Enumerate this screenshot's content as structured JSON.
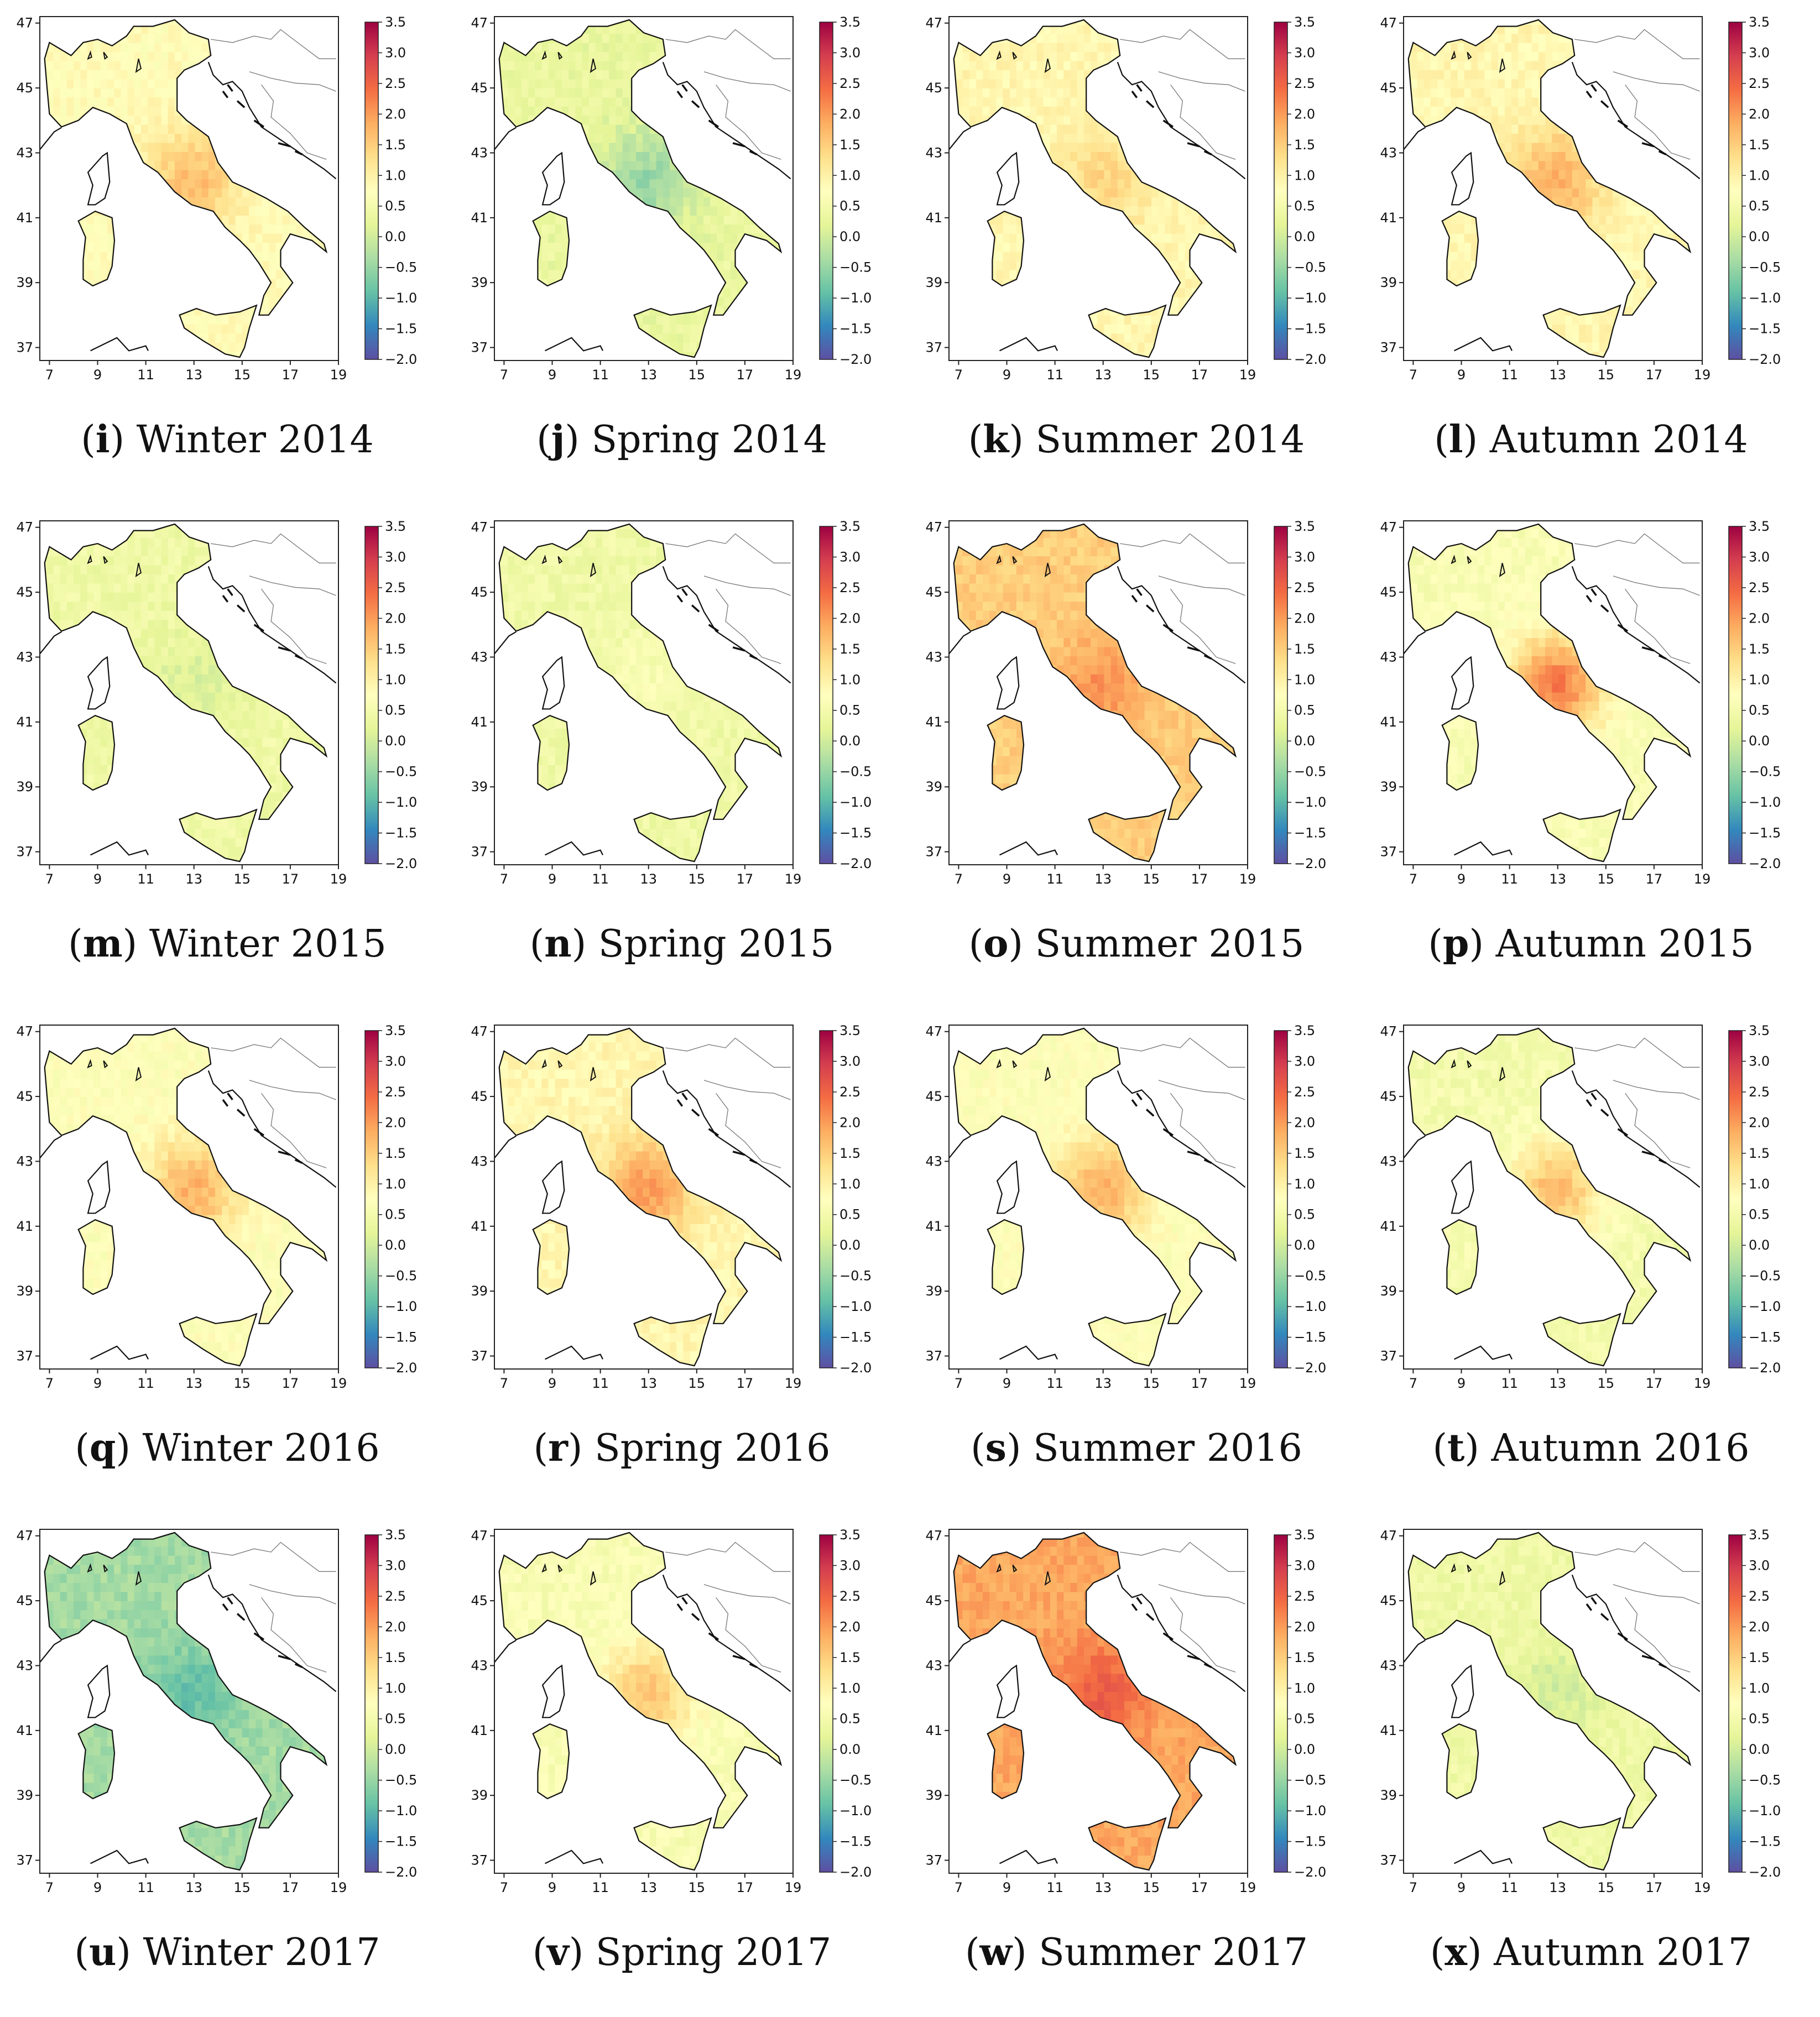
{
  "colorbar": {
    "ticks": [
      "3.5",
      "3.0",
      "2.5",
      "2.0",
      "1.5",
      "1.0",
      "0.5",
      "0.0",
      "−0.5",
      "−1.0",
      "−1.5",
      "−2.0"
    ],
    "range": [
      -2.0,
      3.5
    ],
    "colormap": [
      "#5e4fa2",
      "#3288bd",
      "#66c2a5",
      "#abdda4",
      "#e6f598",
      "#ffffbf",
      "#fee08b",
      "#fdae61",
      "#f46d43",
      "#d53e4f",
      "#9e0142"
    ]
  },
  "axes": {
    "lon_ticks": [
      "7",
      "9",
      "11",
      "13",
      "15",
      "17",
      "19"
    ],
    "lat_ticks": [
      "47",
      "45",
      "43",
      "41",
      "39",
      "37"
    ]
  },
  "panels": [
    {
      "letter": "i",
      "season": "Winter",
      "year": "2014",
      "mean": 0.8,
      "hotspot": 1.7
    },
    {
      "letter": "j",
      "season": "Spring",
      "year": "2014",
      "mean": 0.3,
      "hotspot": -0.5
    },
    {
      "letter": "k",
      "season": "Summer",
      "year": "2014",
      "mean": 0.9,
      "hotspot": 1.4
    },
    {
      "letter": "l",
      "season": "Autumn",
      "year": "2014",
      "mean": 0.9,
      "hotspot": 1.8
    },
    {
      "letter": "m",
      "season": "Winter",
      "year": "2015",
      "mean": 0.4,
      "hotspot": 0.1
    },
    {
      "letter": "n",
      "season": "Spring",
      "year": "2015",
      "mean": 0.4,
      "hotspot": 0.6
    },
    {
      "letter": "o",
      "season": "Summer",
      "year": "2015",
      "mean": 1.5,
      "hotspot": 2.1
    },
    {
      "letter": "p",
      "season": "Autumn",
      "year": "2015",
      "mean": 0.6,
      "hotspot": 2.3
    },
    {
      "letter": "q",
      "season": "Winter",
      "year": "2016",
      "mean": 0.7,
      "hotspot": 1.8
    },
    {
      "letter": "r",
      "season": "Spring",
      "year": "2016",
      "mean": 0.9,
      "hotspot": 2.0
    },
    {
      "letter": "s",
      "season": "Summer",
      "year": "2016",
      "mean": 0.7,
      "hotspot": 1.8
    },
    {
      "letter": "t",
      "season": "Autumn",
      "year": "2016",
      "mean": 0.5,
      "hotspot": 1.7
    },
    {
      "letter": "u",
      "season": "Winter",
      "year": "2017",
      "mean": -0.4,
      "hotspot": -0.9
    },
    {
      "letter": "v",
      "season": "Spring",
      "year": "2017",
      "mean": 0.6,
      "hotspot": 1.6
    },
    {
      "letter": "w",
      "season": "Summer",
      "year": "2017",
      "mean": 1.9,
      "hotspot": 2.6
    },
    {
      "letter": "x",
      "season": "Autumn",
      "year": "2017",
      "mean": 0.4,
      "hotspot": 0.0
    }
  ]
}
